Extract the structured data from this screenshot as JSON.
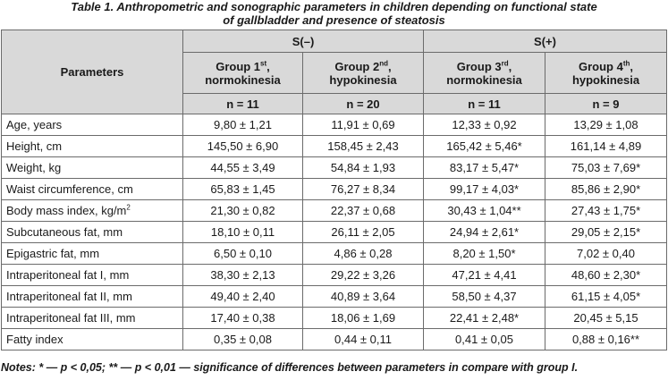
{
  "caption": {
    "line1": "Table 1. Anthropometric and sonographic parameters in children depending on functional state",
    "line2": "of gallbladder and presence of steatosis"
  },
  "header": {
    "parameters_label": "Parameters",
    "group_s_minus": "S(–)",
    "group_s_plus": "S(+)",
    "groups": [
      {
        "name": "Group 1",
        "ordinal": "st",
        "suffix": ",",
        "subtitle": "normokinesia",
        "n": "n = 11"
      },
      {
        "name": "Group 2",
        "ordinal": "nd",
        "suffix": ",",
        "subtitle": "hypokinesia",
        "n": "n = 20"
      },
      {
        "name": "Group 3",
        "ordinal": "rd",
        "suffix": ",",
        "subtitle": "normokinesia",
        "n": "n = 11"
      },
      {
        "name": "Group 4",
        "ordinal": "th",
        "suffix": ",",
        "subtitle": "hypokinesia",
        "n": "n = 9"
      }
    ]
  },
  "rows": [
    {
      "param": "Age, years",
      "values": [
        "9,80 ± 1,21",
        "11,91 ± 0,69",
        "12,33 ± 0,92",
        "13,29 ± 1,08"
      ]
    },
    {
      "param": "Height, cm",
      "values": [
        "145,50 ± 6,90",
        "158,45 ± 2,43",
        "165,42 ± 5,46*",
        "161,14 ± 4,89"
      ]
    },
    {
      "param": "Weight, kg",
      "values": [
        "44,55 ± 3,49",
        "54,84 ± 1,93",
        "83,17 ± 5,47*",
        "75,03 ± 7,69*"
      ]
    },
    {
      "param": "Waist circumference, cm",
      "values": [
        "65,83 ± 1,45",
        "76,27 ± 8,34",
        "99,17 ± 4,03*",
        "85,86 ± 2,90*"
      ]
    },
    {
      "param": "Body mass index, kg/m",
      "param_sup": "2",
      "values": [
        "21,30 ± 0,82",
        "22,37 ± 0,68",
        "30,43 ± 1,04**",
        "27,43 ± 1,75*"
      ]
    },
    {
      "param": "Subcutaneous fat, mm",
      "values": [
        "18,10 ± 0,11",
        "26,11 ± 2,05",
        "24,94 ± 2,61*",
        "29,05 ± 2,15*"
      ]
    },
    {
      "param": "Epigastric fat, mm",
      "values": [
        "6,50 ± 0,10",
        "4,86 ± 0,28",
        "8,20 ± 1,50*",
        "7,02 ± 0,40"
      ]
    },
    {
      "param": "Intraperitoneal fat I, mm",
      "values": [
        "38,30 ± 2,13",
        "29,22 ± 3,26",
        "47,21 ± 4,41",
        "48,60 ± 2,30*"
      ]
    },
    {
      "param": "Intraperitoneal fat II, mm",
      "values": [
        "49,40 ± 2,40",
        "40,89 ± 3,64",
        "58,50 ± 4,37",
        "61,15 ± 4,05*"
      ]
    },
    {
      "param": "Intraperitoneal fat III, mm",
      "values": [
        "17,40 ± 0,38",
        "18,06 ± 1,69",
        "22,41 ± 2,48*",
        "20,45 ± 5,15"
      ]
    },
    {
      "param": "Fatty index",
      "values": [
        "0,35 ± 0,08",
        "0,44 ± 0,11",
        "0,41 ± 0,05",
        "0,88 ± 0,16**"
      ]
    }
  ],
  "notes": "Notes: * — p < 0,05; ** — p < 0,01 — significance of differences between parameters in compare with group I."
}
